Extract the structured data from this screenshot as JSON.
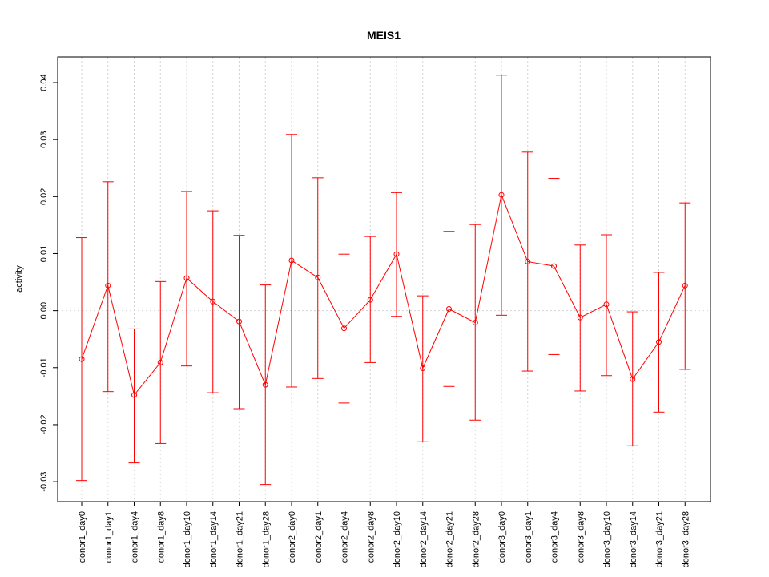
{
  "chart_data": {
    "type": "line",
    "title": "MEIS1",
    "xlabel": "",
    "ylabel": "activity",
    "ylim": [
      -0.0335,
      0.0445
    ],
    "yticks": [
      -0.03,
      -0.02,
      -0.01,
      0.0,
      0.01,
      0.02,
      0.03,
      0.04
    ],
    "ytick_labels": [
      "-0.03",
      "-0.02",
      "-0.01",
      "0.00",
      "0.01",
      "0.02",
      "0.03",
      "0.04"
    ],
    "grid": true,
    "reference_line_y": 0.0,
    "categories": [
      "donor1_day0",
      "donor1_day1",
      "donor1_day4",
      "donor1_day8",
      "donor1_day10",
      "donor1_day14",
      "donor1_day21",
      "donor1_day28",
      "donor2_day0",
      "donor2_day1",
      "donor2_day4",
      "donor2_day8",
      "donor2_day10",
      "donor2_day14",
      "donor2_day21",
      "donor2_day28",
      "donor3_day0",
      "donor3_day1",
      "donor3_day4",
      "donor3_day8",
      "donor3_day10",
      "donor3_day14",
      "donor3_day21",
      "donor3_day28"
    ],
    "series": [
      {
        "color": "#ff0000",
        "values": [
          -0.0085,
          0.0044,
          -0.0148,
          -0.0091,
          0.0057,
          0.0016,
          -0.0019,
          -0.013,
          0.0088,
          0.0058,
          -0.0031,
          0.0019,
          0.0099,
          -0.0101,
          0.0003,
          -0.0021,
          0.0203,
          0.0086,
          0.0078,
          -0.0012,
          0.0011,
          -0.012,
          -0.0055,
          0.0044
        ],
        "upper": [
          0.0128,
          0.0226,
          -0.0032,
          0.0051,
          0.0209,
          0.0175,
          0.0132,
          0.0045,
          0.0309,
          0.0233,
          0.0099,
          0.013,
          0.0207,
          0.0026,
          0.0139,
          0.0151,
          0.0413,
          0.0278,
          0.0232,
          0.0115,
          0.0133,
          -0.0002,
          0.0067,
          0.0189
        ],
        "lower": [
          -0.0298,
          -0.0142,
          -0.0267,
          -0.0233,
          -0.0097,
          -0.0144,
          -0.0172,
          -0.0305,
          -0.0134,
          -0.0119,
          -0.0162,
          -0.0091,
          -0.001,
          -0.023,
          -0.0133,
          -0.0192,
          -0.0008,
          -0.0106,
          -0.0077,
          -0.0141,
          -0.0114,
          -0.0237,
          -0.0178,
          -0.0103
        ]
      }
    ]
  }
}
